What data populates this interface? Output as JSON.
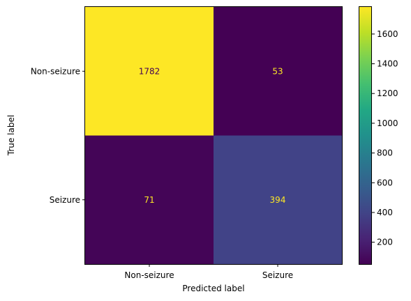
{
  "chart_data": {
    "type": "heatmap",
    "title": "",
    "xlabel": "Predicted label",
    "ylabel": "True label",
    "x_categories": [
      "Non-seizure",
      "Seizure"
    ],
    "y_categories": [
      "Non-seizure",
      "Seizure"
    ],
    "values": [
      [
        1782,
        53
      ],
      [
        71,
        394
      ]
    ],
    "value_labels": [
      [
        "1782",
        "53"
      ],
      [
        "71",
        "394"
      ]
    ],
    "colormap": "viridis",
    "colorbar": {
      "range": [
        53,
        1782
      ],
      "ticks": [
        "200",
        "400",
        "600",
        "800",
        "1000",
        "1200",
        "1400",
        "1600"
      ]
    },
    "colors": {
      "low": "#440154",
      "high": "#fde725",
      "text_on_dark": "#fde725",
      "text_on_light": "#440154"
    }
  }
}
